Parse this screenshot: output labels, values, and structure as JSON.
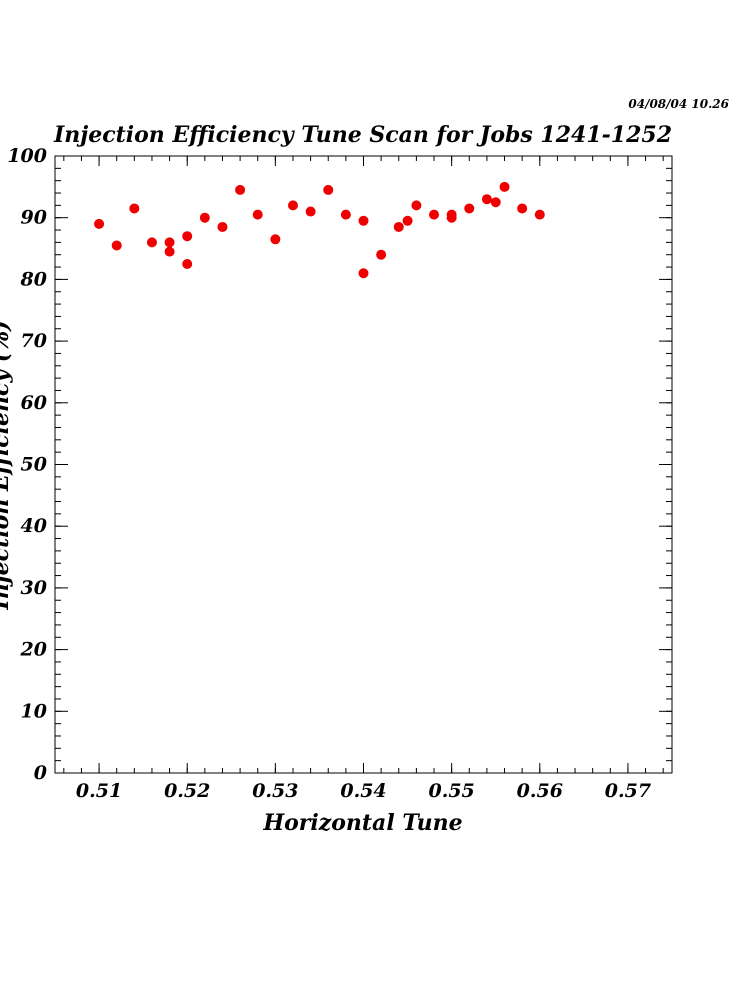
{
  "timestamp": "04/08/04   10.26",
  "chart_data": {
    "type": "scatter",
    "title": "Injection Efficiency Tune Scan for Jobs 1241-1252",
    "xlabel": "Horizontal Tune",
    "ylabel": "Injection Efficiency (%)",
    "xlim": [
      0.505,
      0.575
    ],
    "ylim": [
      0,
      100
    ],
    "x_ticks": [
      0.51,
      0.52,
      0.53,
      0.54,
      0.55,
      0.56,
      0.57
    ],
    "x_tick_labels": [
      "0.51",
      "0.52",
      "0.53",
      "0.54",
      "0.55",
      "0.56",
      "0.57"
    ],
    "y_ticks": [
      0,
      10,
      20,
      30,
      40,
      50,
      60,
      70,
      80,
      90,
      100
    ],
    "y_tick_labels": [
      "0",
      "10",
      "20",
      "30",
      "40",
      "50",
      "60",
      "70",
      "80",
      "90",
      "100"
    ],
    "marker_color": "#ee0000",
    "series": [
      {
        "points": [
          [
            0.51,
            89.0
          ],
          [
            0.512,
            85.5
          ],
          [
            0.514,
            91.5
          ],
          [
            0.516,
            86.0
          ],
          [
            0.518,
            86.0
          ],
          [
            0.518,
            84.5
          ],
          [
            0.52,
            87.0
          ],
          [
            0.52,
            82.5
          ],
          [
            0.522,
            90.0
          ],
          [
            0.524,
            88.5
          ],
          [
            0.526,
            94.5
          ],
          [
            0.528,
            90.5
          ],
          [
            0.53,
            86.5
          ],
          [
            0.532,
            92.0
          ],
          [
            0.534,
            91.0
          ],
          [
            0.536,
            94.5
          ],
          [
            0.538,
            90.5
          ],
          [
            0.54,
            89.5
          ],
          [
            0.54,
            81.0
          ],
          [
            0.542,
            84.0
          ],
          [
            0.544,
            88.5
          ],
          [
            0.545,
            89.5
          ],
          [
            0.546,
            92.0
          ],
          [
            0.548,
            90.5
          ],
          [
            0.55,
            90.0
          ],
          [
            0.55,
            90.5
          ],
          [
            0.552,
            91.5
          ],
          [
            0.554,
            93.0
          ],
          [
            0.555,
            92.5
          ],
          [
            0.556,
            95.0
          ],
          [
            0.558,
            91.5
          ],
          [
            0.56,
            90.5
          ]
        ]
      }
    ]
  }
}
